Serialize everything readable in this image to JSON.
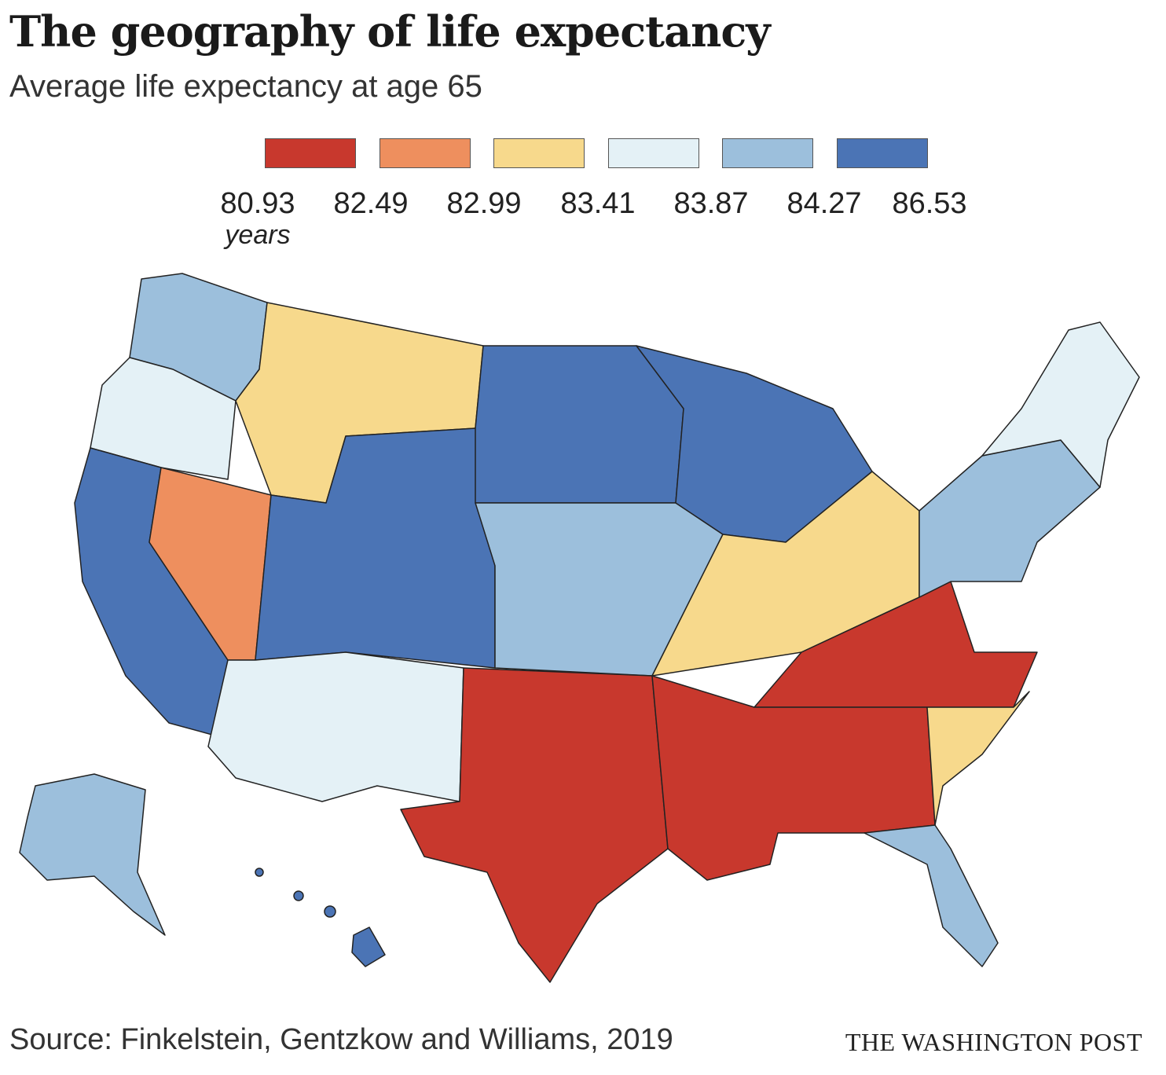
{
  "title": "The geography of life expectancy",
  "subtitle": "Average life expectancy at age 65",
  "legend": {
    "colors": [
      "#c8382d",
      "#ee8f5e",
      "#f7d98c",
      "#e4f1f6",
      "#9cbfdc",
      "#4b74b5"
    ],
    "breaks": [
      "80.93",
      "82.49",
      "82.99",
      "83.41",
      "83.87",
      "84.27",
      "86.53"
    ],
    "unit": "years"
  },
  "map": {
    "regions": [
      {
        "name": "pacific-northwest",
        "class": 4
      },
      {
        "name": "west-coast-north",
        "class": 3
      },
      {
        "name": "california",
        "class": 5
      },
      {
        "name": "nevada",
        "class": 1
      },
      {
        "name": "mountain-north",
        "class": 2
      },
      {
        "name": "mountain-central",
        "class": 5
      },
      {
        "name": "southwest",
        "class": 3
      },
      {
        "name": "northern-plains",
        "class": 5
      },
      {
        "name": "central-plains",
        "class": 4
      },
      {
        "name": "texas-oklahoma",
        "class": 0
      },
      {
        "name": "upper-midwest",
        "class": 5
      },
      {
        "name": "lower-midwest",
        "class": 2
      },
      {
        "name": "appalachia",
        "class": 0
      },
      {
        "name": "deep-south",
        "class": 0
      },
      {
        "name": "southeast-coast",
        "class": 2
      },
      {
        "name": "florida",
        "class": 4
      },
      {
        "name": "northeast",
        "class": 4
      },
      {
        "name": "new-england",
        "class": 3
      },
      {
        "name": "alaska",
        "class": 4
      },
      {
        "name": "hawaii",
        "class": 5
      }
    ]
  },
  "source": "Source: Finkelstein, Gentzkow and Williams, 2019",
  "credit": "THE WASHINGTON POST"
}
